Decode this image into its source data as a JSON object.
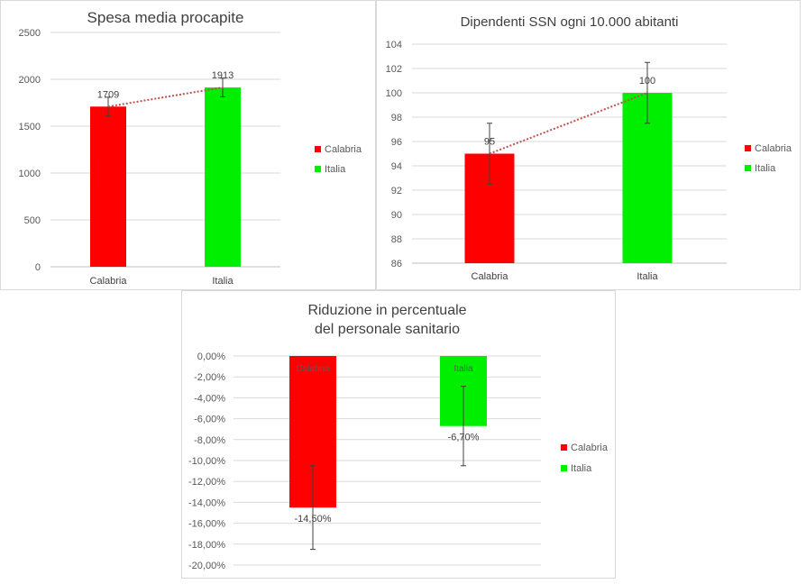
{
  "chart_data": [
    {
      "type": "bar",
      "title": "Spesa media procapite",
      "categories": [
        "Calabria",
        "Italia"
      ],
      "values": [
        1709,
        1913
      ],
      "data_labels": [
        "1709",
        "1913"
      ],
      "colors": [
        "#ff0000",
        "#00ee00"
      ],
      "ylim": [
        0,
        2500
      ],
      "yticks": [
        0,
        500,
        1000,
        1500,
        2000,
        2500
      ],
      "ytick_labels": [
        "0",
        "500",
        "1000",
        "1500",
        "2000",
        "2500"
      ],
      "error_bars": [
        100,
        100
      ],
      "trendline": true,
      "grid": true,
      "legend": [
        "Calabria",
        "Italia"
      ],
      "legend_position": "right"
    },
    {
      "type": "bar",
      "title": "Dipendenti SSN ogni 10.000 abitanti",
      "categories": [
        "Calabria",
        "Italia"
      ],
      "values": [
        95,
        100
      ],
      "data_labels": [
        "95",
        "100"
      ],
      "colors": [
        "#ff0000",
        "#00ee00"
      ],
      "ylim": [
        86,
        104
      ],
      "yticks": [
        86,
        88,
        90,
        92,
        94,
        96,
        98,
        100,
        102,
        104
      ],
      "ytick_labels": [
        "86",
        "88",
        "90",
        "92",
        "94",
        "96",
        "98",
        "100",
        "102",
        "104"
      ],
      "error_bars": [
        2.5,
        2.5
      ],
      "trendline": true,
      "grid": true,
      "legend": [
        "Calabria",
        "Italia"
      ],
      "legend_position": "right"
    },
    {
      "type": "bar",
      "title": "Riduzione in percentuale del personale sanitario",
      "title_lines": [
        "Riduzione in percentuale",
        "del personale sanitario"
      ],
      "categories": [
        "Calabria",
        "Italia"
      ],
      "values": [
        -14.5,
        -6.7
      ],
      "data_labels": [
        "-14,50%",
        "-6,70%"
      ],
      "inner_labels": [
        "Calabria",
        "Italia"
      ],
      "colors": [
        "#ff0000",
        "#00ee00"
      ],
      "ylim": [
        -20,
        0
      ],
      "yticks": [
        0,
        -2,
        -4,
        -6,
        -8,
        -10,
        -12,
        -14,
        -16,
        -18,
        -20
      ],
      "ytick_labels": [
        "0,00%",
        "-2,00%",
        "-4,00%",
        "-6,00%",
        "-8,00%",
        "-10,00%",
        "-12,00%",
        "-14,00%",
        "-16,00%",
        "-18,00%",
        "-20,00%"
      ],
      "error_bars": [
        4,
        3.8
      ],
      "trendline": false,
      "grid": true,
      "legend": [
        "Calabria",
        "Italia"
      ],
      "legend_position": "right"
    }
  ]
}
